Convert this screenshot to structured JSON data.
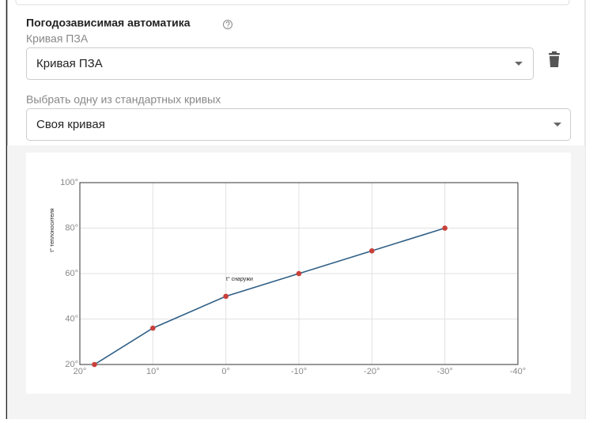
{
  "form": {
    "title": "Погодозависимая автоматика",
    "curve_label": "Кривая ПЗА",
    "curve_value": "Кривая ПЗА",
    "standard_label": "Выбрать одну из стандартных кривых",
    "standard_value": "Своя кривая"
  },
  "chart_data": {
    "type": "line",
    "xlabel": "t° снаружи",
    "ylabel": "t° теплоносителя",
    "x": [
      18,
      10,
      0,
      -10,
      -20,
      -30
    ],
    "values": [
      20,
      36,
      50,
      60,
      70,
      80
    ],
    "color": "#2f5f86",
    "marker_color": "#c9403a",
    "grid": true,
    "xlim": [
      20,
      -40
    ],
    "ylim": [
      20,
      100
    ],
    "xticks": [
      {
        "value": 20,
        "label": "20°"
      },
      {
        "value": 10,
        "label": "10°"
      },
      {
        "value": 0,
        "label": "0°"
      },
      {
        "value": -10,
        "label": "-10°"
      },
      {
        "value": -20,
        "label": "-20°"
      },
      {
        "value": -30,
        "label": "-30°"
      },
      {
        "value": -40,
        "label": "-40°"
      }
    ],
    "yticks": [
      {
        "value": 20,
        "label": "20°"
      },
      {
        "value": 40,
        "label": "40°"
      },
      {
        "value": 60,
        "label": "60°"
      },
      {
        "value": 80,
        "label": "80°"
      },
      {
        "value": 100,
        "label": "100°"
      }
    ]
  }
}
